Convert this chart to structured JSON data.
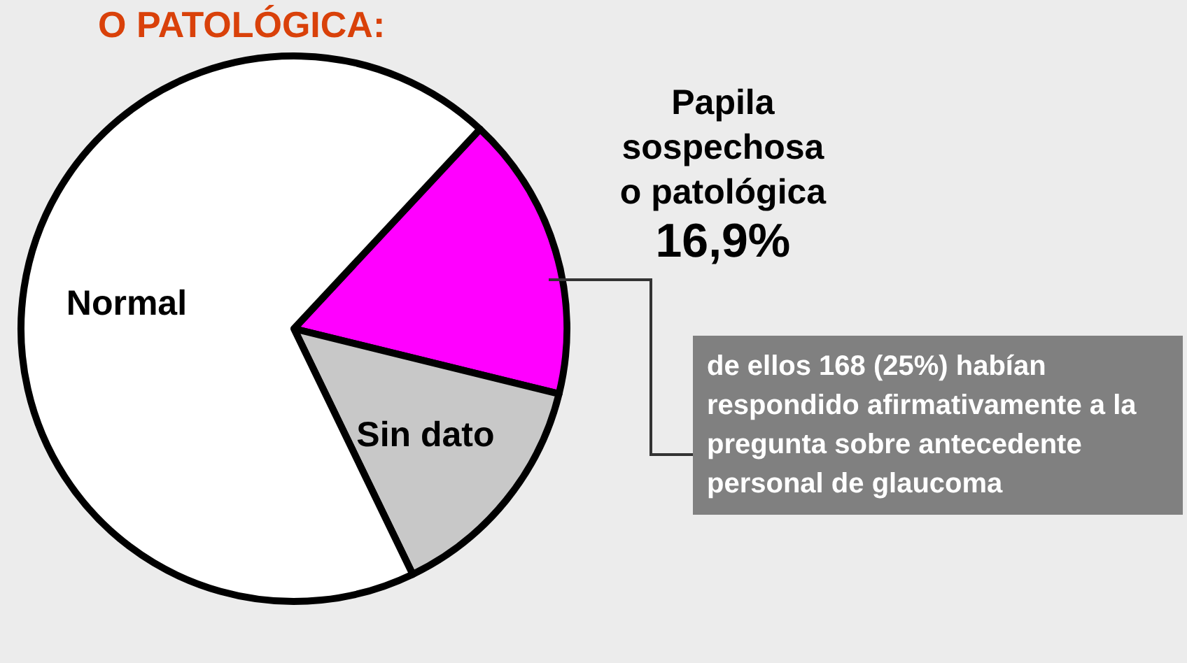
{
  "chart_data": {
    "type": "pie",
    "title": "O PATOLÓGICA:",
    "categories": [
      "Papila sospechosa o patológica",
      "Sin dato",
      "Normal"
    ],
    "values": [
      16.9,
      14,
      69.1
    ],
    "colors": [
      "#ff00ff",
      "#c8c8c8",
      "#ffffff"
    ],
    "value_labels": [
      "16,9%",
      null,
      null
    ],
    "annotations": [
      "de ellos 168 (25%) habían respondido afirmativamente a la pregunta sobre antecedente personal de glaucoma"
    ]
  }
}
